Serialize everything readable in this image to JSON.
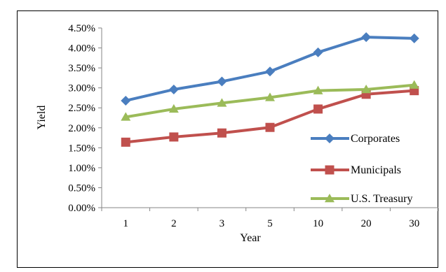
{
  "chart_data": {
    "type": "line",
    "title": "",
    "xlabel": "Year",
    "ylabel": "Yield",
    "categories": [
      "1",
      "2",
      "3",
      "5",
      "10",
      "20",
      "30"
    ],
    "ylim": [
      0,
      0.045
    ],
    "yticks": [
      "0.00%",
      "0.50%",
      "1.00%",
      "1.50%",
      "2.00%",
      "2.50%",
      "3.00%",
      "3.50%",
      "4.00%",
      "4.50%"
    ],
    "grid": false,
    "legend_position": "right",
    "series": [
      {
        "name": "Corporates",
        "color": "#4a7ebf",
        "marker": "diamond",
        "values": [
          0.0268,
          0.0296,
          0.0316,
          0.0341,
          0.0389,
          0.0427,
          0.0424
        ]
      },
      {
        "name": "Municipals",
        "color": "#c0504d",
        "marker": "square",
        "values": [
          0.0164,
          0.0177,
          0.0187,
          0.0201,
          0.0247,
          0.0284,
          0.0293
        ]
      },
      {
        "name": "U.S. Treasury",
        "color": "#9bbb59",
        "marker": "triangle",
        "values": [
          0.0227,
          0.0247,
          0.0262,
          0.0276,
          0.0293,
          0.0296,
          0.0307
        ]
      }
    ]
  }
}
